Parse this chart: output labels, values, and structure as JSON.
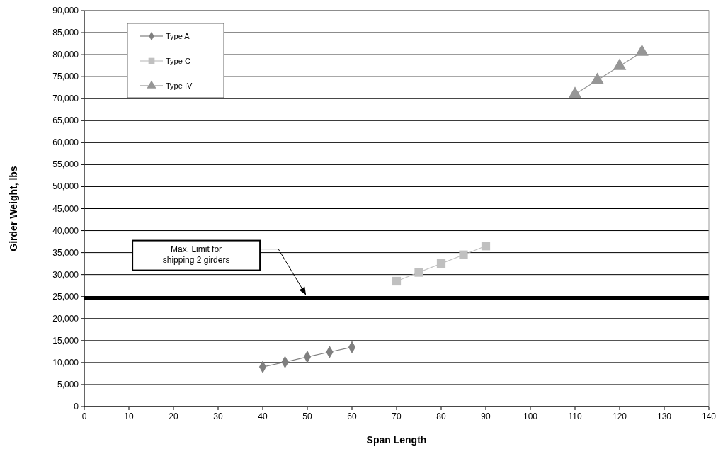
{
  "chart_data": {
    "type": "line",
    "xlabel": "Span Length",
    "ylabel": "Girder Weight, lbs",
    "xlim": [
      0,
      140
    ],
    "xticks": [
      0,
      10,
      20,
      30,
      40,
      50,
      60,
      70,
      80,
      90,
      100,
      110,
      120,
      130,
      140
    ],
    "ylim": [
      0,
      90000
    ],
    "yticks": [
      {
        "value": 0,
        "label": "0"
      },
      {
        "value": 5000,
        "label": "5,000"
      },
      {
        "value": 10000,
        "label": "10,000"
      },
      {
        "value": 15000,
        "label": "15,000"
      },
      {
        "value": 20000,
        "label": "20,000"
      },
      {
        "value": 25000,
        "label": "25,000"
      },
      {
        "value": 30000,
        "label": "30,000"
      },
      {
        "value": 35000,
        "label": "35,000"
      },
      {
        "value": 40000,
        "label": "40,000"
      },
      {
        "value": 45000,
        "label": "45,000"
      },
      {
        "value": 50000,
        "label": "50,000"
      },
      {
        "value": 55000,
        "label": "55,000"
      },
      {
        "value": 60000,
        "label": "60,000"
      },
      {
        "value": 65000,
        "label": "65,000"
      },
      {
        "value": 70000,
        "label": "70,000"
      },
      {
        "value": 75000,
        "label": "75,000"
      },
      {
        "value": 80000,
        "label": "80,000"
      },
      {
        "value": 85000,
        "label": "85,000"
      },
      {
        "value": 90000,
        "label": "90,000"
      }
    ],
    "grid": "y",
    "legend": "top left",
    "series": [
      {
        "name": "Type A",
        "color": "#7f7f7f",
        "marker": "diamond",
        "x": [
          40,
          45,
          50,
          55,
          60
        ],
        "values": [
          9000,
          10100,
          11300,
          12400,
          13500
        ]
      },
      {
        "name": "Type C",
        "color": "#c0c0c0",
        "marker": "square",
        "x": [
          70,
          75,
          80,
          85,
          90
        ],
        "values": [
          28500,
          30500,
          32500,
          34500,
          36500
        ]
      },
      {
        "name": "Type IV",
        "color": "#969696",
        "marker": "triangle",
        "x": [
          110,
          115,
          120,
          125
        ],
        "values": [
          71000,
          74200,
          77400,
          80600
        ]
      }
    ],
    "ref_lines": [
      {
        "axis": "y",
        "value": 24700,
        "color": "#000000"
      }
    ],
    "annotations": [
      "Max. Limit for shipping 2 girders"
    ]
  }
}
